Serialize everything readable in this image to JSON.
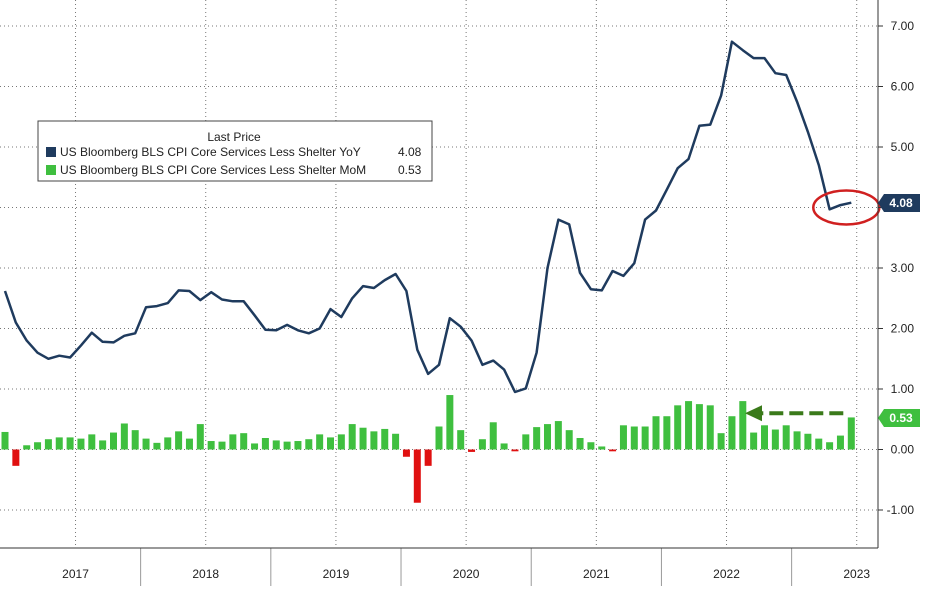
{
  "chart_data": {
    "type": "line+bar",
    "title": "",
    "xlabel": "",
    "ylabel": "",
    "ylim": [
      -1.2,
      7.3
    ],
    "y_ticks": [
      "7.00",
      "6.00",
      "5.00",
      "4.00",
      "3.00",
      "2.00",
      "1.00",
      "0.00",
      "-1.00"
    ],
    "year_labels": [
      "2017",
      "2018",
      "2019",
      "2020",
      "2021",
      "2022",
      "2023"
    ],
    "grid": true,
    "legend": {
      "title": "Last Price",
      "placement": "upper-left",
      "entries": [
        {
          "name": "US Bloomberg BLS CPI Core Services Less Shelter YoY",
          "last": "4.08",
          "color": "#1f3b5e"
        },
        {
          "name": "US Bloomberg BLS CPI Core Services Less Shelter MoM",
          "last": "0.53",
          "color": "#3fbf3f"
        }
      ]
    },
    "last_value_labels": {
      "yoy": "4.08",
      "mom": "0.53"
    },
    "colors": {
      "line": "#1f3b5e",
      "bar_positive": "#3fbf3f",
      "bar_negative": "#e01010",
      "annotation_circle": "#d02020",
      "annotation_arrow": "#3a7a1a"
    },
    "series": [
      {
        "name": "US Bloomberg BLS CPI Core Services Less Shelter YoY",
        "kind": "line",
        "values": [
          2.62,
          2.1,
          1.8,
          1.6,
          1.5,
          1.55,
          1.52,
          1.72,
          1.93,
          1.78,
          1.77,
          1.88,
          1.92,
          2.35,
          2.37,
          2.42,
          2.63,
          2.62,
          2.47,
          2.6,
          2.48,
          2.45,
          2.45,
          2.22,
          1.98,
          1.97,
          2.06,
          1.97,
          1.92,
          2.0,
          2.32,
          2.19,
          2.5,
          2.7,
          2.67,
          2.8,
          2.9,
          2.62,
          1.65,
          1.25,
          1.4,
          2.17,
          2.03,
          1.8,
          1.4,
          1.47,
          1.32,
          0.95,
          1.01,
          1.6,
          3.0,
          3.8,
          3.72,
          2.92,
          2.65,
          2.63,
          2.95,
          2.87,
          3.08,
          3.8,
          3.95,
          4.3,
          4.65,
          4.8,
          5.35,
          5.37,
          5.85,
          6.74,
          6.6,
          6.47,
          6.47,
          6.22,
          6.19,
          5.75,
          5.25,
          4.7,
          3.97,
          4.04,
          4.08
        ],
        "start": "2016-12"
      },
      {
        "name": "US Bloomberg BLS CPI Core Services Less Shelter MoM",
        "kind": "bar",
        "values": [
          0.29,
          -0.27,
          0.07,
          0.12,
          0.17,
          0.2,
          0.2,
          0.18,
          0.25,
          0.15,
          0.28,
          0.43,
          0.32,
          0.18,
          0.11,
          0.2,
          0.3,
          0.18,
          0.42,
          0.14,
          0.13,
          0.25,
          0.27,
          0.1,
          0.19,
          0.15,
          0.13,
          0.14,
          0.17,
          0.25,
          0.2,
          0.25,
          0.42,
          0.36,
          0.3,
          0.34,
          0.26,
          -0.12,
          -0.88,
          -0.27,
          0.38,
          0.9,
          0.32,
          -0.04,
          0.17,
          0.45,
          0.1,
          -0.03,
          0.25,
          0.37,
          0.42,
          0.47,
          0.32,
          0.19,
          0.12,
          0.05,
          -0.03,
          0.4,
          0.38,
          0.38,
          0.55,
          0.55,
          0.73,
          0.8,
          0.75,
          0.73,
          0.27,
          0.55,
          0.8,
          0.28,
          0.4,
          0.33,
          0.4,
          0.3,
          0.26,
          0.18,
          0.12,
          0.23,
          0.53
        ],
        "start": "2016-12"
      }
    ]
  }
}
